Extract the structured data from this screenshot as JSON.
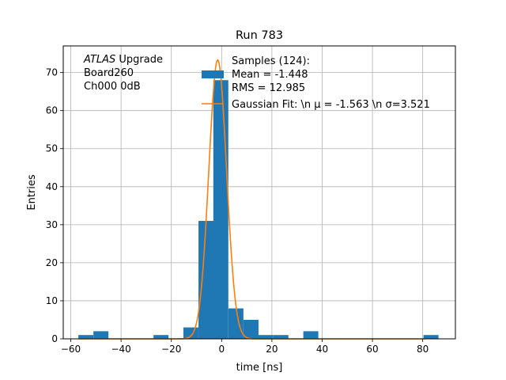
{
  "chart_data": {
    "type": "bar",
    "title": "Run 783",
    "xlabel": "time [ns]",
    "ylabel": "Entries",
    "xlim": [
      -63,
      93
    ],
    "ylim": [
      0,
      77
    ],
    "grid": true,
    "x_ticks": [
      -60,
      -40,
      -20,
      0,
      20,
      40,
      60,
      80
    ],
    "y_ticks": [
      0,
      10,
      20,
      30,
      40,
      50,
      60,
      70
    ],
    "x_tick_labels": [
      "−60",
      "−40",
      "−20",
      "0",
      "20",
      "40",
      "60",
      "80"
    ],
    "y_tick_labels": [
      "0",
      "10",
      "20",
      "30",
      "40",
      "50",
      "60",
      "70"
    ],
    "histogram": {
      "color": "#1f77b4",
      "bin_width": 5.97,
      "bins": [
        {
          "left": -57.0,
          "count": 1
        },
        {
          "left": -51.0,
          "count": 2
        },
        {
          "left": -27.1,
          "count": 1
        },
        {
          "left": -15.2,
          "count": 3
        },
        {
          "left": -9.2,
          "count": 31
        },
        {
          "left": -3.3,
          "count": 68
        },
        {
          "left": 2.7,
          "count": 8
        },
        {
          "left": 8.7,
          "count": 5
        },
        {
          "left": 14.6,
          "count": 1
        },
        {
          "left": 20.6,
          "count": 1
        },
        {
          "left": 32.5,
          "count": 2
        },
        {
          "left": 80.3,
          "count": 1
        }
      ]
    },
    "gaussian_fit": {
      "color": "#ff7f0e",
      "mu": -1.563,
      "sigma": 3.521,
      "amplitude": 73.3,
      "x_range": [
        -57,
        81
      ]
    },
    "annotation_lines": [
      {
        "italic": "ATLAS",
        "rest": " Upgrade"
      },
      {
        "italic": "",
        "rest": " Board260"
      },
      {
        "italic": "",
        "rest": " Ch000 0dB"
      }
    ],
    "legend": {
      "placement": "top-center",
      "samples_lines": [
        "Samples (124):",
        " Mean = -1.448",
        " RMS = 12.985"
      ],
      "fit_label": "Gaussian Fit: \\n μ = -1.563 \\n σ=3.521"
    }
  }
}
